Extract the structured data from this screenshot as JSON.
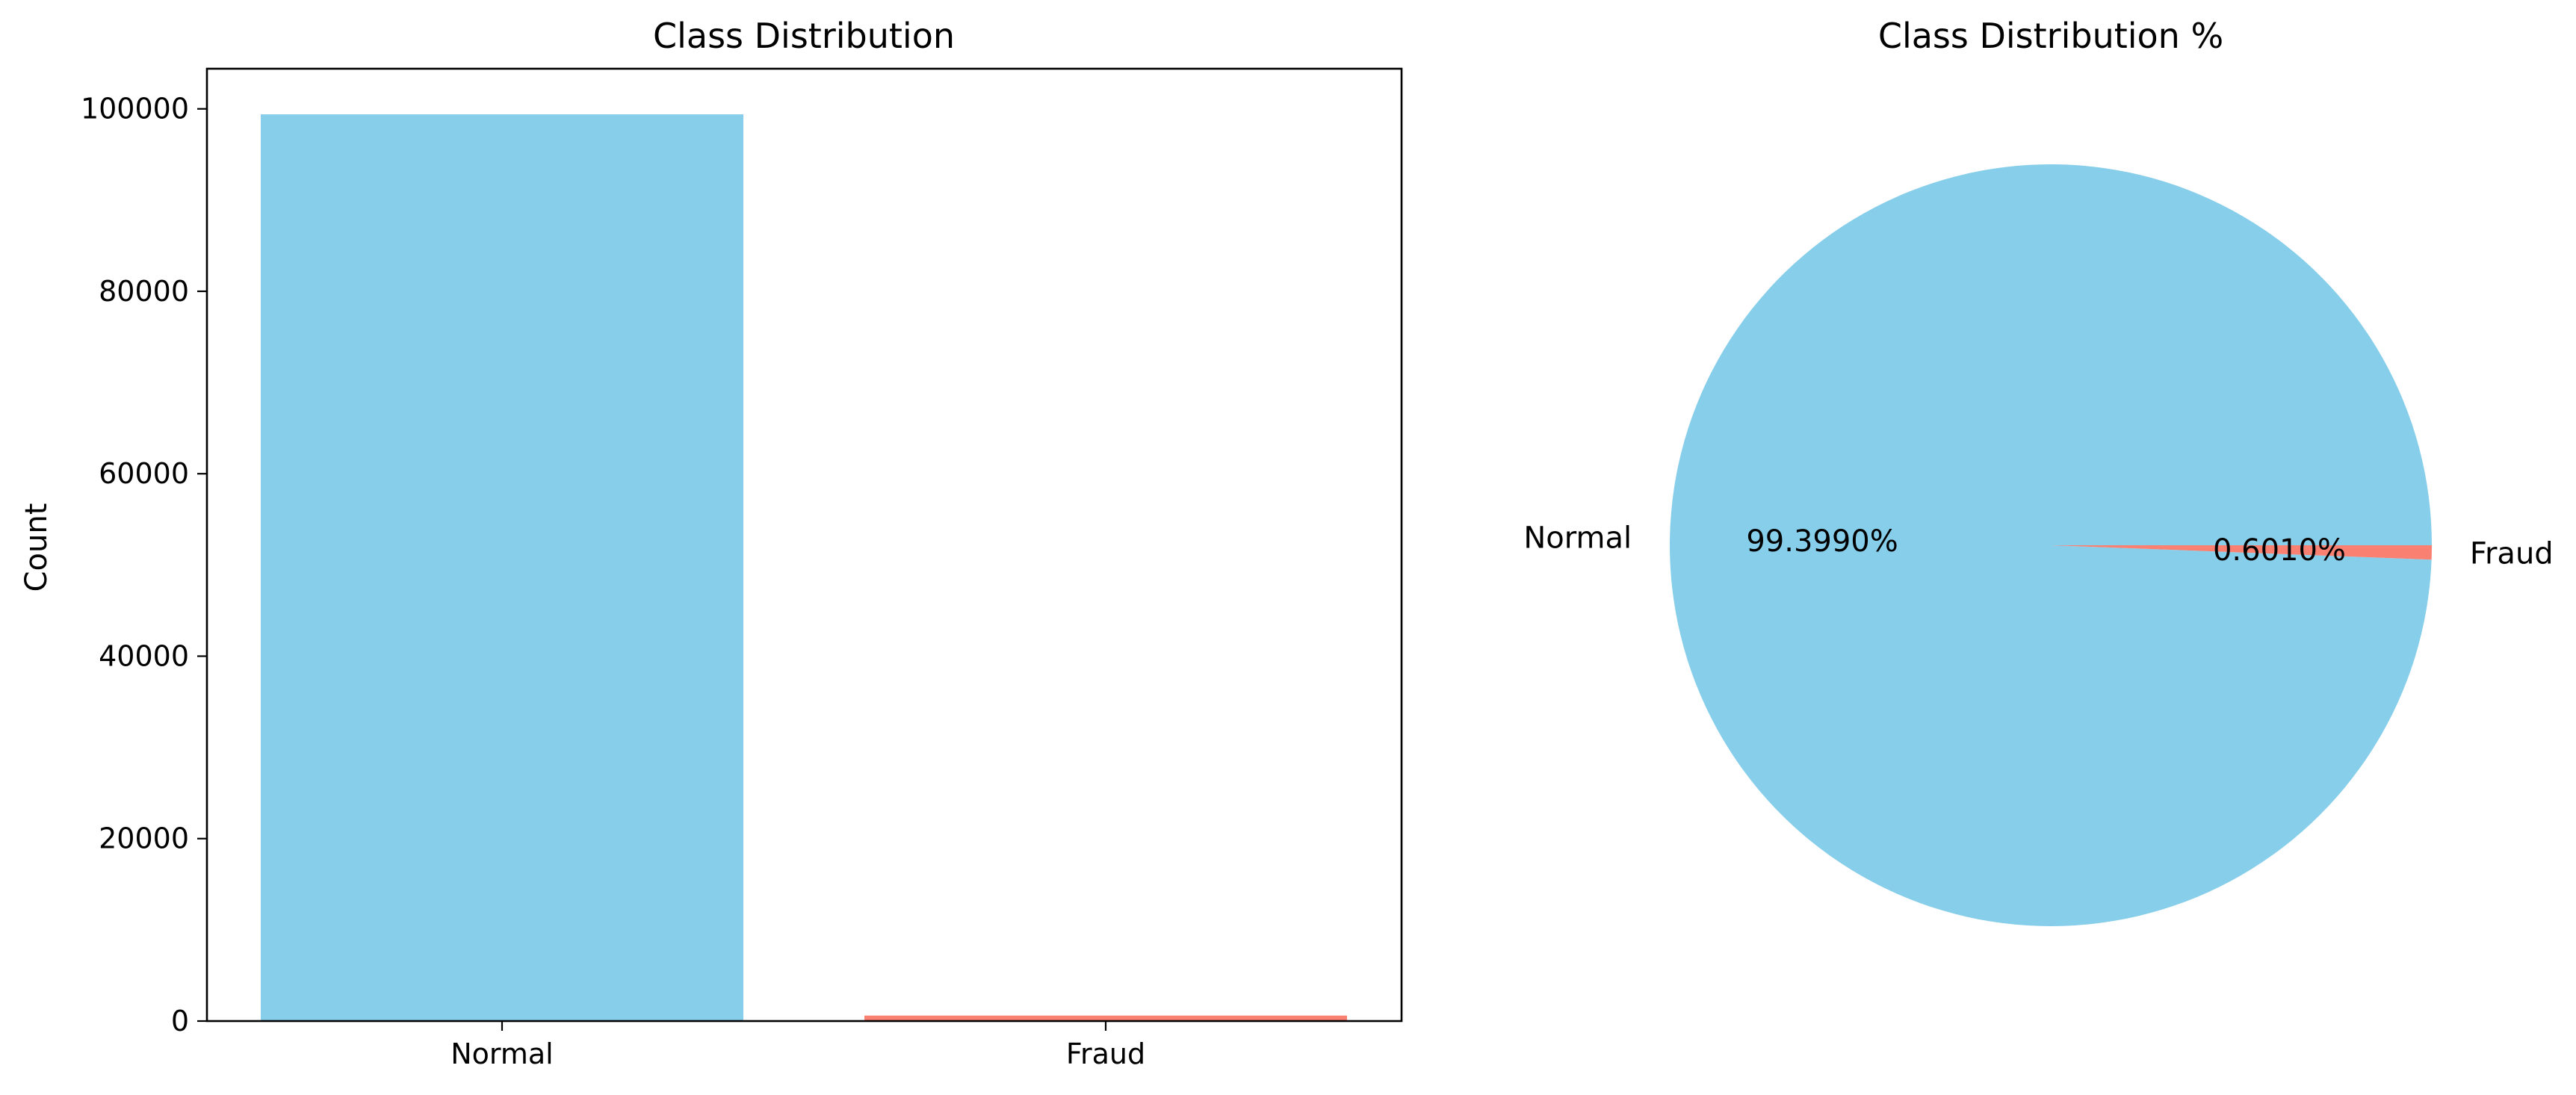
{
  "chart_data": [
    {
      "type": "bar",
      "title": "Class Distribution",
      "xlabel": "",
      "ylabel": "Count",
      "categories": [
        "Normal",
        "Fraud"
      ],
      "values": [
        99399,
        601
      ],
      "colors": [
        "#87CEEB",
        "#FA8072"
      ],
      "ylim": [
        0,
        104400
      ],
      "yticks": [
        0,
        20000,
        40000,
        60000,
        80000,
        100000
      ],
      "grid": false
    },
    {
      "type": "pie",
      "title": "Class Distribution %",
      "labels": [
        "Normal",
        "Fraud"
      ],
      "values": [
        99.399,
        0.601
      ],
      "pct_labels": [
        "99.3990%",
        "0.6010%"
      ],
      "colors": [
        "#87CEEB",
        "#FA8072"
      ]
    }
  ]
}
